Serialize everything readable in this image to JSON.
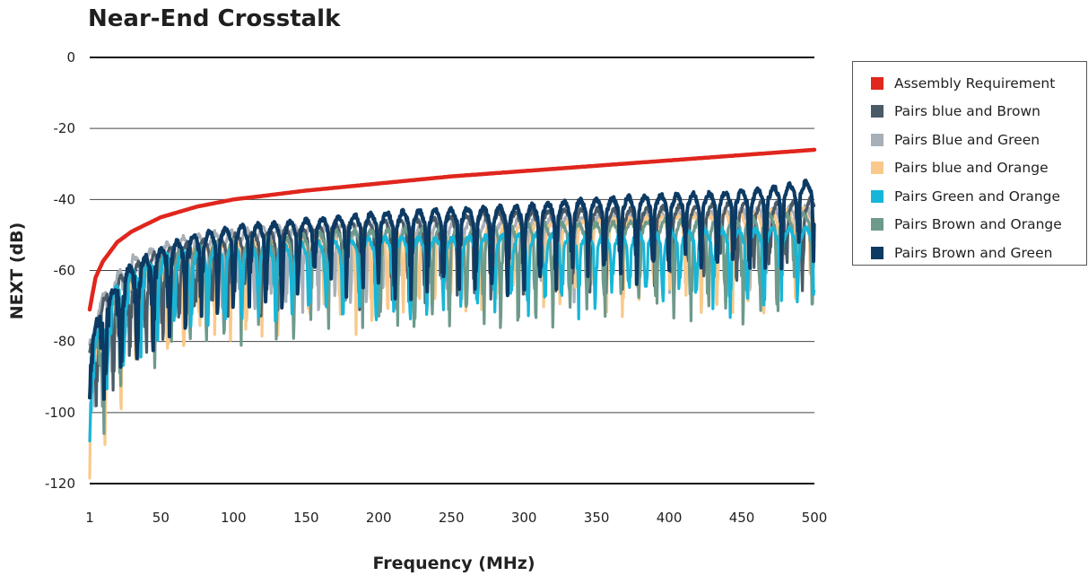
{
  "chart_data": {
    "type": "line",
    "title": "Near-End Crosstalk",
    "xlabel": "Frequency (MHz)",
    "ylabel": "NEXT (dB)",
    "xlim": [
      1,
      500
    ],
    "ylim": [
      -120,
      0
    ],
    "x_ticks": [
      "1",
      "50",
      "100",
      "150",
      "200",
      "250",
      "300",
      "350",
      "400",
      "450",
      "500"
    ],
    "y_ticks": [
      "0",
      "-20",
      "-40",
      "-60",
      "-80",
      "-100",
      "-120"
    ],
    "grid": "horizontal",
    "legend_position": "right",
    "series": [
      {
        "name": "Assembly Requirement",
        "color": "#e0261d",
        "x": [
          1,
          5,
          10,
          20,
          30,
          50,
          75,
          100,
          150,
          200,
          250,
          300,
          350,
          400,
          450,
          500
        ],
        "y": [
          -71,
          -62,
          -57.5,
          -52,
          -49,
          -45,
          -42,
          -40,
          -37.5,
          -35.5,
          -33.5,
          -32,
          -30.5,
          -29,
          -27.5,
          -26
        ]
      },
      {
        "name": "Pairs blue and Brown",
        "color": "#4a5a66",
        "x": [
          1,
          3,
          5,
          8,
          10,
          15,
          20,
          25,
          30,
          40,
          50,
          60,
          75,
          90,
          100,
          125,
          150,
          175,
          200,
          225,
          250,
          275,
          300,
          325,
          350,
          375,
          400,
          425,
          450,
          475,
          500
        ],
        "y": [
          -84,
          -80,
          -76,
          -72,
          -70,
          -67,
          -64,
          -63,
          -61,
          -58,
          -57,
          -55,
          -54,
          -53,
          -52,
          -51,
          -50,
          -49,
          -48,
          -48,
          -47,
          -46,
          -46,
          -45,
          -45,
          -45,
          -44,
          -44,
          -43,
          -43,
          -42
        ]
      },
      {
        "name": "Pairs Blue and Green",
        "color": "#a7afb8",
        "x": [
          1,
          5,
          10,
          15,
          20,
          25,
          30,
          40,
          50,
          60,
          75,
          100,
          125,
          150,
          175,
          200,
          250,
          300,
          350,
          400,
          450,
          500
        ],
        "y": [
          -80,
          -74,
          -68,
          -65,
          -63,
          -60,
          -58,
          -56,
          -55,
          -53,
          -52,
          -51,
          -50,
          -50,
          -49,
          -49,
          -48,
          -48,
          -47,
          -46,
          -45,
          -44
        ]
      },
      {
        "name": "Pairs blue and Orange",
        "color": "#f9c98b",
        "x": [
          1,
          5,
          10,
          15,
          20,
          25,
          30,
          40,
          50,
          60,
          75,
          100,
          125,
          150,
          175,
          200,
          250,
          300,
          350,
          400,
          450,
          500
        ],
        "y": [
          -88,
          -84,
          -78,
          -73,
          -70,
          -67,
          -65,
          -62,
          -60,
          -58,
          -56,
          -55,
          -54,
          -53,
          -52,
          -51,
          -50,
          -49,
          -48,
          -47,
          -46,
          -45
        ]
      },
      {
        "name": "Pairs Green and Orange",
        "color": "#17b6d8",
        "x": [
          1,
          5,
          10,
          15,
          20,
          25,
          30,
          40,
          50,
          60,
          75,
          100,
          125,
          150,
          175,
          200,
          250,
          300,
          350,
          400,
          450,
          500
        ],
        "y": [
          -86,
          -80,
          -74,
          -70,
          -66,
          -64,
          -62,
          -60,
          -58,
          -57,
          -56,
          -55,
          -55,
          -54,
          -54,
          -53,
          -53,
          -52,
          -52,
          -51,
          -51,
          -50
        ]
      },
      {
        "name": "Pairs Brown and Orange",
        "color": "#6e9a8b",
        "x": [
          1,
          5,
          10,
          15,
          20,
          25,
          30,
          40,
          50,
          60,
          75,
          100,
          125,
          150,
          175,
          200,
          250,
          300,
          350,
          400,
          450,
          500
        ],
        "y": [
          -88,
          -82,
          -76,
          -71,
          -68,
          -65,
          -63,
          -60,
          -58,
          -56,
          -55,
          -54,
          -53,
          -52,
          -51,
          -51,
          -50,
          -49,
          -49,
          -48,
          -47,
          -46
        ]
      },
      {
        "name": "Pairs Brown and Green",
        "color": "#0c3a63",
        "x": [
          1,
          5,
          10,
          15,
          20,
          25,
          30,
          40,
          50,
          60,
          75,
          100,
          125,
          150,
          175,
          200,
          250,
          300,
          350,
          400,
          450,
          500
        ],
        "y": [
          -82,
          -77,
          -72,
          -68,
          -65,
          -62,
          -60,
          -58,
          -56,
          -54,
          -52,
          -50,
          -49,
          -48,
          -47,
          -46,
          -45,
          -44,
          -42,
          -41,
          -40,
          -37
        ]
      }
    ]
  }
}
